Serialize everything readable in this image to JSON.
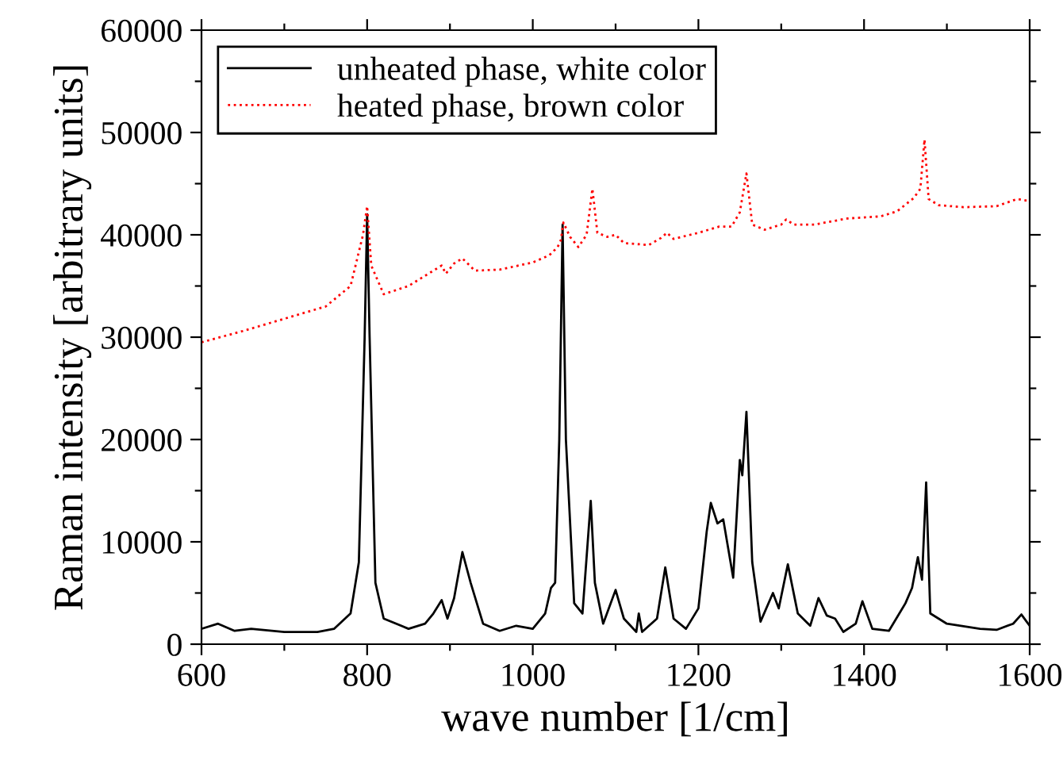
{
  "chart_data": {
    "type": "line",
    "xlabel": "wave number [1/cm]",
    "ylabel": "Raman intensity [arbitrary units]",
    "xlim": [
      600,
      1600
    ],
    "ylim": [
      0,
      60000
    ],
    "xticks": [
      600,
      {
        "value": 700,
        "label": null
      },
      800,
      {
        "value": 900,
        "label": null
      },
      1000,
      {
        "value": 1100,
        "label": null
      },
      1200,
      {
        "value": 1300,
        "label": null
      },
      1400,
      {
        "value": 1500,
        "label": null
      },
      1600
    ],
    "yticks": [
      0,
      {
        "value": 5000,
        "label": null
      },
      10000,
      {
        "value": 15000,
        "label": null
      },
      20000,
      {
        "value": 25000,
        "label": null
      },
      30000,
      {
        "value": 35000,
        "label": null
      },
      40000,
      {
        "value": 45000,
        "label": null
      },
      50000,
      {
        "value": 55000,
        "label": null
      },
      60000
    ],
    "grid": false,
    "legend": "top left",
    "series": [
      {
        "name": "unheated phase, white color",
        "color": "#000000",
        "line_style": "solid",
        "x": [
          600,
          620,
          640,
          660,
          700,
          740,
          760,
          780,
          790,
          797,
          800,
          803,
          810,
          820,
          850,
          870,
          880,
          890,
          897,
          905,
          915,
          925,
          940,
          960,
          980,
          1000,
          1015,
          1022,
          1027,
          1032,
          1036,
          1040,
          1050,
          1060,
          1070,
          1075,
          1085,
          1100,
          1110,
          1125,
          1128,
          1132,
          1150,
          1160,
          1170,
          1185,
          1200,
          1210,
          1215,
          1223,
          1230,
          1242,
          1250,
          1253,
          1258,
          1265,
          1275,
          1290,
          1297,
          1308,
          1320,
          1335,
          1345,
          1355,
          1365,
          1375,
          1390,
          1398,
          1410,
          1430,
          1450,
          1458,
          1465,
          1470,
          1475,
          1480,
          1500,
          1540,
          1560,
          1580,
          1590,
          1600
        ],
        "values": [
          1500,
          2000,
          1300,
          1500,
          1200,
          1200,
          1500,
          3000,
          8000,
          30000,
          42000,
          30000,
          6000,
          2500,
          1500,
          2000,
          3000,
          4300,
          2500,
          4500,
          9000,
          6000,
          2000,
          1300,
          1800,
          1500,
          3000,
          5500,
          6000,
          20000,
          41000,
          20000,
          4000,
          3000,
          14000,
          6000,
          2000,
          5300,
          2500,
          1200,
          3000,
          1200,
          2500,
          7500,
          2500,
          1500,
          3500,
          11000,
          13800,
          11800,
          12200,
          6500,
          18000,
          16500,
          22700,
          8000,
          2200,
          5000,
          3500,
          7800,
          3000,
          1800,
          4500,
          2800,
          2500,
          1200,
          2000,
          4200,
          1500,
          1300,
          4000,
          5500,
          8500,
          6300,
          15800,
          3000,
          2000,
          1500,
          1400,
          2000,
          2900,
          1800
        ]
      },
      {
        "name": "heated phase, brown color",
        "color": "#ff0000",
        "line_style": "dotted",
        "x": [
          600,
          650,
          700,
          750,
          780,
          795,
          800,
          805,
          820,
          850,
          880,
          890,
          895,
          905,
          915,
          930,
          960,
          1000,
          1020,
          1030,
          1034,
          1037,
          1045,
          1055,
          1065,
          1072,
          1078,
          1090,
          1100,
          1110,
          1140,
          1155,
          1162,
          1170,
          1200,
          1225,
          1240,
          1250,
          1258,
          1265,
          1280,
          1300,
          1306,
          1315,
          1340,
          1380,
          1420,
          1440,
          1460,
          1468,
          1473,
          1478,
          1490,
          1520,
          1560,
          1585,
          1600
        ],
        "values": [
          29500,
          30600,
          31800,
          33000,
          35000,
          40000,
          42800,
          37000,
          34200,
          35000,
          36500,
          37000,
          36200,
          37200,
          37700,
          36500,
          36600,
          37300,
          38000,
          38800,
          39500,
          41200,
          39800,
          38800,
          40000,
          44500,
          40200,
          39800,
          40000,
          39200,
          39000,
          39700,
          40200,
          39600,
          40200,
          40800,
          40800,
          42200,
          46000,
          41000,
          40500,
          41000,
          41500,
          41000,
          41000,
          41600,
          41800,
          42300,
          43600,
          44500,
          49300,
          43500,
          42900,
          42700,
          42800,
          43500,
          43300
        ]
      }
    ]
  }
}
